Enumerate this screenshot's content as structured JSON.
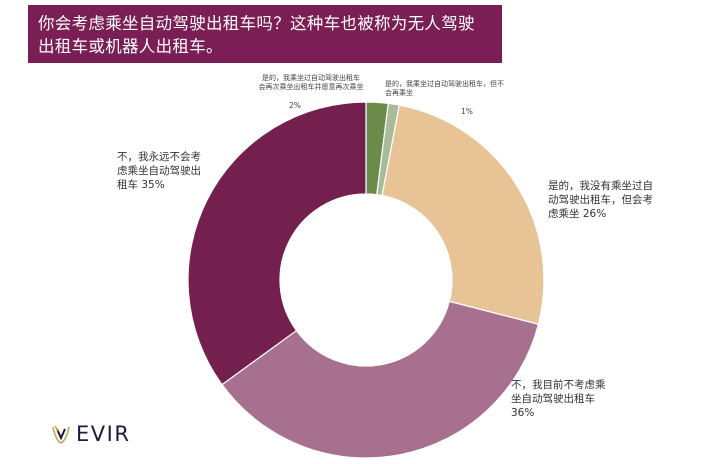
{
  "title": "你会考虑乘坐自动驾驶出租车吗？这种车也被称为无人驾驶出租车或机器人出租车。",
  "title_line1": "你会考虑乘坐自动驾驶出租车吗？这种车也被称为无人驾驶",
  "title_line2": "出租车或机器人出租车。",
  "colors": {
    "title_bg": "#7a1e55",
    "green": "#6b8b4b",
    "light_green": "#a8bb9a",
    "tan": "#e7c396",
    "mauve": "#a7708f",
    "plum": "#73204f"
  },
  "chart_data": {
    "type": "pie",
    "donut": true,
    "slices": [
      {
        "label": "是的，我乘坐过自动驾驶出租车会再次乘坐出租车并愿意再次乘坐",
        "value": 2,
        "value_text": "2%",
        "color": "#6b8b4b"
      },
      {
        "label": "是的，我乘坐过自动驾驶出租车，但不会再乘坐",
        "value": 1,
        "value_text": "1%",
        "color": "#a8bb9a"
      },
      {
        "label": "是的，我没有乘坐过自动驾驶出租车，但会考虑乘坐",
        "value": 26,
        "value_text": "26%",
        "color": "#e7c396"
      },
      {
        "label": "不，我目前不考虑乘坐自动驾驶出租车",
        "value": 36,
        "value_text": "36%",
        "color": "#a7708f"
      },
      {
        "label": "不，我永远不会考虑乘坐自动驾驶出租车",
        "value": 35,
        "value_text": "35%",
        "color": "#73204f"
      }
    ]
  },
  "labels": {
    "s1_line1": "是的，我乘坐过自动驾驶出租车",
    "s1_line2": "会再次乘坐出租车并愿意再次乘坐",
    "s1_pct": "2%",
    "s2_line1": "是的，我乘坐过自动驾驶出租车，但不",
    "s2_line2": "会再乘坐",
    "s2_pct": "1%",
    "s3_line1": "是的，我没有乘坐过自",
    "s3_line2": "动驾驶出租车，但会考",
    "s3_line3": "虑乘坐 26%",
    "s4_line1": "不，我目前不考虑乘",
    "s4_line2": "坐自动驾驶出租车",
    "s4_line3": "36%",
    "s5_line1": "不，我永远不会考",
    "s5_line2": "虑乘坐自动驾驶出",
    "s5_line3": "租车 35%"
  },
  "logo": {
    "text": "EVIR",
    "icon": "evir-logo-icon"
  }
}
